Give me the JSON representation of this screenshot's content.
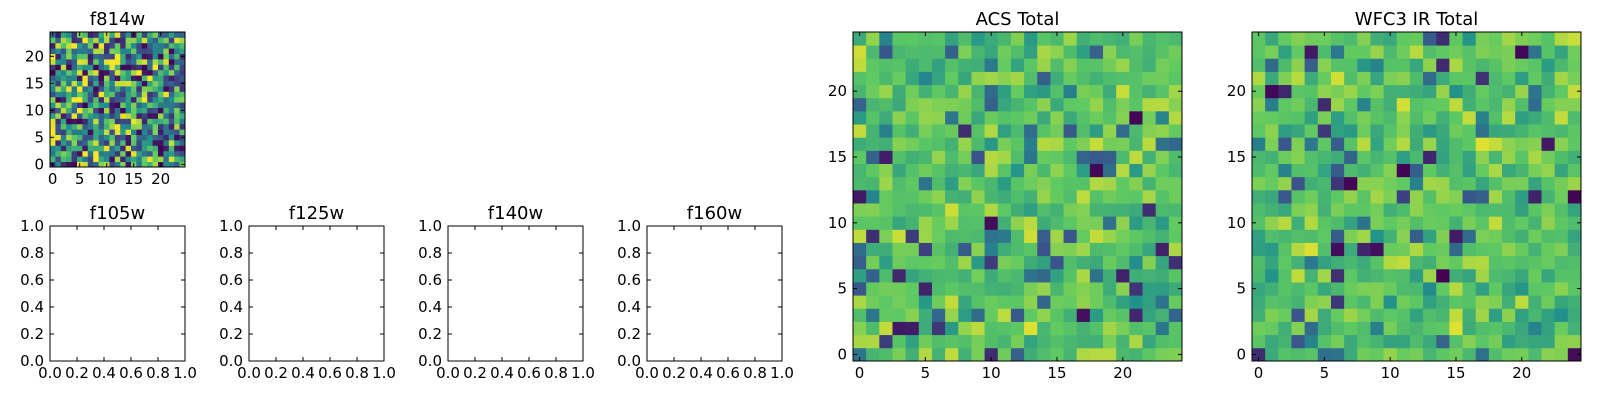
{
  "figure": {
    "background": "#ffffff"
  },
  "colormap": {
    "name": "viridis",
    "stops": [
      "#440154",
      "#3b528b",
      "#21918c",
      "#5ec962",
      "#fde725"
    ]
  },
  "chart_data": [
    {
      "id": "f814w",
      "type": "heatmap",
      "title": "f814w",
      "grid_size": 25,
      "xlim": [
        -0.5,
        24.5
      ],
      "ylim": [
        -0.5,
        24.5
      ],
      "xticks": [
        0,
        5,
        10,
        15,
        20
      ],
      "yticks": [
        0,
        5,
        10,
        15,
        20
      ],
      "seed": 814,
      "style": "noisy"
    },
    {
      "id": "f105w",
      "type": "heatmap",
      "title": "f105w",
      "empty": true,
      "xlim": [
        0,
        1
      ],
      "ylim": [
        0,
        1
      ],
      "xticks": [
        "0.0",
        "0.2",
        "0.4",
        "0.6",
        "0.8",
        "1.0"
      ],
      "yticks": [
        "0.0",
        "0.2",
        "0.4",
        "0.6",
        "0.8",
        "1.0"
      ]
    },
    {
      "id": "f125w",
      "type": "heatmap",
      "title": "f125w",
      "empty": true,
      "xlim": [
        0,
        1
      ],
      "ylim": [
        0,
        1
      ],
      "xticks": [
        "0.0",
        "0.2",
        "0.4",
        "0.6",
        "0.8",
        "1.0"
      ],
      "yticks": [
        "0.0",
        "0.2",
        "0.4",
        "0.6",
        "0.8",
        "1.0"
      ]
    },
    {
      "id": "f140w",
      "type": "heatmap",
      "title": "f140w",
      "empty": true,
      "xlim": [
        0,
        1
      ],
      "ylim": [
        0,
        1
      ],
      "xticks": [
        "0.0",
        "0.2",
        "0.4",
        "0.6",
        "0.8",
        "1.0"
      ],
      "yticks": [
        "0.0",
        "0.2",
        "0.4",
        "0.6",
        "0.8",
        "1.0"
      ]
    },
    {
      "id": "f160w",
      "type": "heatmap",
      "title": "f160w",
      "empty": true,
      "xlim": [
        0,
        1
      ],
      "ylim": [
        0,
        1
      ],
      "xticks": [
        "0.0",
        "0.2",
        "0.4",
        "0.6",
        "0.8",
        "1.0"
      ],
      "yticks": [
        "0.0",
        "0.2",
        "0.4",
        "0.6",
        "0.8",
        "1.0"
      ]
    },
    {
      "id": "acs-total",
      "type": "heatmap",
      "title": "ACS Total",
      "grid_size": 25,
      "xlim": [
        -0.5,
        24.5
      ],
      "ylim": [
        -0.5,
        24.5
      ],
      "xticks": [
        0,
        5,
        10,
        15,
        20
      ],
      "yticks": [
        0,
        5,
        10,
        15,
        20
      ],
      "seed": 1234,
      "style": "smooth"
    },
    {
      "id": "wfc3-ir-total",
      "type": "heatmap",
      "title": "WFC3 IR Total",
      "grid_size": 25,
      "xlim": [
        -0.5,
        24.5
      ],
      "ylim": [
        -0.5,
        24.5
      ],
      "xticks": [
        0,
        5,
        10,
        15,
        20
      ],
      "yticks": [
        0,
        5,
        10,
        15,
        20
      ],
      "seed": 4321,
      "style": "smooth"
    }
  ]
}
